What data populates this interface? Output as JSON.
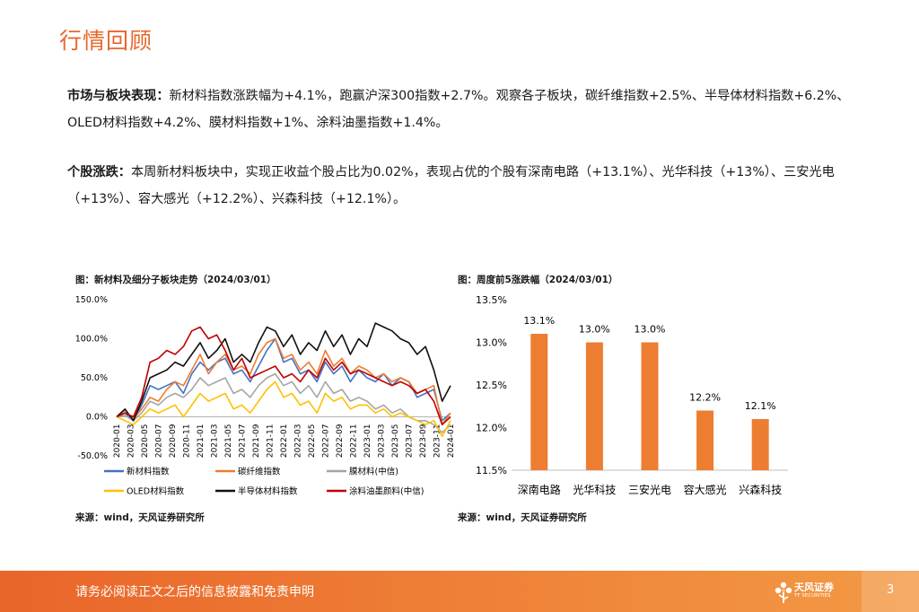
{
  "page": {
    "title": "行情回顾",
    "para1": {
      "label": "市场与板块表现：",
      "text": "新材料指数涨跌幅为+4.1%，跑赢沪深300指数+2.7%。观察各子板块，碳纤维指数+2.5%、半导体材料指数+6.2%、OLED材料指数+4.2%、膜材料指数+1%、涂料油墨指数+1.4%。"
    },
    "para2": {
      "label": "个股涨跌：",
      "text": "本周新材料板块中，实现正收益个股占比为0.02%，表现占优的个股有深南电路（+13.1%）、光华科技（+13%）、三安光电（+13%）、容大感光（+12.2%）、兴森科技（+12.1%）。"
    },
    "footer": {
      "disclaimer": "请务必阅读正文之后的信息披露和免责申明",
      "logo_name": "天风证券",
      "logo_sub": "TF SECURITIES",
      "page_number": "3"
    }
  },
  "chart_data": [
    {
      "type": "line",
      "caption": "图：新材料及细分子板块走势（2024/03/01）",
      "source": "来源：wind，天风证券研究所",
      "ylim": [
        -50,
        150
      ],
      "yticks": [
        "150.0%",
        "100.0%",
        "50.0%",
        "0.0%",
        "-50.0%"
      ],
      "ytick_values": [
        150,
        100,
        50,
        0,
        -50
      ],
      "xticks": [
        "2020-01",
        "2020-03",
        "2020-05",
        "2020-07",
        "2020-09",
        "2020-11",
        "2021-01",
        "2021-03",
        "2021-05",
        "2021-07",
        "2021-09",
        "2021-11",
        "2022-01",
        "2022-03",
        "2022-05",
        "2022-07",
        "2022-09",
        "2022-11",
        "2023-01",
        "2023-03",
        "2023-05",
        "2023-07",
        "2023-09",
        "2023-11",
        "2024-01"
      ],
      "series": [
        {
          "name": "新材料指数",
          "color": "#4472c4",
          "values": [
            0,
            5,
            -5,
            15,
            40,
            35,
            40,
            45,
            30,
            55,
            70,
            60,
            70,
            75,
            55,
            60,
            45,
            65,
            85,
            100,
            70,
            75,
            55,
            60,
            45,
            70,
            55,
            65,
            45,
            60,
            50,
            45,
            55,
            40,
            50,
            45,
            25,
            30,
            35,
            -5,
            5
          ]
        },
        {
          "name": "碳纤维指数",
          "color": "#ed7d31",
          "values": [
            0,
            8,
            -3,
            10,
            25,
            20,
            35,
            45,
            40,
            60,
            80,
            55,
            70,
            80,
            60,
            65,
            55,
            80,
            95,
            100,
            75,
            80,
            60,
            70,
            55,
            85,
            65,
            75,
            55,
            65,
            60,
            50,
            55,
            45,
            50,
            45,
            30,
            35,
            40,
            -10,
            5
          ]
        },
        {
          "name": "膜材料(中信)",
          "color": "#a5a5a5",
          "values": [
            0,
            2,
            -5,
            5,
            20,
            15,
            25,
            30,
            25,
            35,
            50,
            40,
            45,
            50,
            30,
            35,
            25,
            40,
            50,
            55,
            40,
            45,
            30,
            40,
            25,
            45,
            30,
            35,
            20,
            25,
            20,
            10,
            15,
            5,
            10,
            0,
            -5,
            -5,
            -10,
            -20,
            -10
          ]
        },
        {
          "name": "OLED材料指数",
          "color": "#ffc000",
          "values": [
            0,
            -5,
            -10,
            0,
            10,
            5,
            10,
            15,
            0,
            15,
            30,
            20,
            25,
            30,
            10,
            15,
            5,
            20,
            35,
            45,
            25,
            30,
            15,
            20,
            5,
            30,
            20,
            25,
            10,
            15,
            15,
            5,
            10,
            0,
            5,
            0,
            -5,
            -10,
            -5,
            -25,
            -5
          ]
        },
        {
          "name": "半导体材料指数",
          "color": "#111111",
          "values": [
            0,
            10,
            -5,
            20,
            50,
            55,
            60,
            70,
            65,
            80,
            95,
            75,
            85,
            100,
            70,
            80,
            70,
            95,
            115,
            110,
            90,
            105,
            80,
            95,
            85,
            110,
            90,
            105,
            80,
            100,
            90,
            120,
            115,
            110,
            100,
            95,
            80,
            90,
            60,
            20,
            40
          ]
        },
        {
          "name": "涂料油墨颜料(中信)",
          "color": "#c00000",
          "values": [
            0,
            5,
            0,
            25,
            70,
            75,
            85,
            80,
            90,
            110,
            115,
            100,
            105,
            85,
            60,
            75,
            50,
            55,
            60,
            65,
            50,
            55,
            45,
            60,
            50,
            75,
            60,
            70,
            55,
            60,
            55,
            50,
            45,
            40,
            45,
            40,
            30,
            35,
            20,
            -10,
            0
          ]
        }
      ]
    },
    {
      "type": "bar",
      "caption": "图：周度前5涨跌幅（2024/03/01）",
      "source": "来源：wind，天风证券研究所",
      "ylim": [
        11.5,
        13.5
      ],
      "yticks": [
        "13.5%",
        "13.0%",
        "12.5%",
        "12.0%",
        "11.5%"
      ],
      "ytick_values": [
        13.5,
        13.0,
        12.5,
        12.0,
        11.5
      ],
      "categories": [
        "深南电路",
        "光华科技",
        "三安光电",
        "容大感光",
        "兴森科技"
      ],
      "values": [
        13.1,
        13.0,
        13.0,
        12.2,
        12.1
      ],
      "labels": [
        "13.1%",
        "13.0%",
        "13.0%",
        "12.2%",
        "12.1%"
      ],
      "bar_color": "#ed7d31"
    }
  ]
}
